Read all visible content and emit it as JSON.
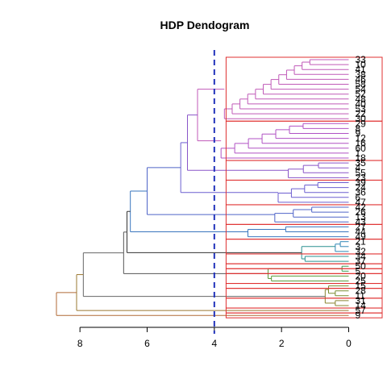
{
  "chart_data": {
    "type": "dendrogram",
    "title": "HDP Dendogram",
    "xlabel": "",
    "ylabel": "",
    "xlim": [
      8.7,
      -0.9
    ],
    "xticks": [
      "8",
      "6",
      "4",
      "2",
      "0"
    ],
    "cut_height": 4,
    "leaves": [
      "33",
      "10",
      "41",
      "38",
      "46",
      "58",
      "54",
      "52",
      "48",
      "40",
      "53",
      "22",
      "30",
      "29",
      "8",
      "9",
      "12",
      "16",
      "60",
      "1",
      "18",
      "35",
      "4",
      "55",
      "23",
      "39",
      "24",
      "36",
      "6",
      "47",
      "42",
      "26",
      "13",
      "43",
      "27",
      "44",
      "49",
      "21",
      "3",
      "32",
      "34",
      "37",
      "50",
      "5",
      "20",
      "25",
      "15",
      "28",
      "11",
      "31",
      "14",
      "57",
      "9"
    ],
    "clusters": [
      {
        "color": "#c05ab8",
        "leaves": [
          "33",
          "10",
          "41",
          "38",
          "46",
          "58",
          "54",
          "52",
          "48",
          "40",
          "53",
          "22",
          "30"
        ],
        "merge_height": 3.7
      },
      {
        "color": "#b052c4",
        "leaves": [
          "29",
          "8",
          "9",
          "12",
          "16",
          "60",
          "1",
          "18"
        ],
        "merge_height": 3.8
      },
      {
        "color": "#8a55c8",
        "leaves": [
          "35",
          "4",
          "55",
          "23"
        ],
        "merge_height": 1.8
      },
      {
        "color": "#6c5ed0",
        "leaves": [
          "39",
          "24",
          "36",
          "6",
          "47"
        ],
        "merge_height": 2.1
      },
      {
        "color": "#4f64c8",
        "leaves": [
          "42",
          "26",
          "13",
          "43"
        ],
        "merge_height": 2.2
      },
      {
        "color": "#3a76be",
        "leaves": [
          "27",
          "44",
          "49"
        ],
        "merge_height": 3.0
      },
      {
        "color": "#2f86b6",
        "leaves": [
          "21",
          "3",
          "32"
        ],
        "merge_height": 0.4
      },
      {
        "color": "#2a9090",
        "leaves": [
          "34",
          "37"
        ],
        "merge_height": 1.3
      },
      {
        "color": "#2a9a70",
        "leaves": [
          "50"
        ],
        "merge_height": 0
      },
      {
        "color": "#3c9a50",
        "leaves": [
          "5"
        ],
        "merge_height": 0
      },
      {
        "color": "#5a9a3a",
        "leaves": [
          "20",
          "25"
        ],
        "merge_height": 2.3
      },
      {
        "color": "#6a9434",
        "leaves": [
          "15"
        ],
        "merge_height": 0
      },
      {
        "color": "#7a8c30",
        "leaves": [
          "28",
          "11"
        ],
        "merge_height": 0.4
      },
      {
        "color": "#8a8430",
        "leaves": [
          "31",
          "14"
        ],
        "merge_height": 0.4
      },
      {
        "color": "#9a7830",
        "leaves": [
          "57"
        ],
        "merge_height": 0
      },
      {
        "color": "#b06a36",
        "leaves": [
          "9"
        ],
        "merge_height": 0
      }
    ],
    "top_merges": [
      4.5,
      4.8,
      5.0,
      6.0,
      6.5,
      6.6,
      6.7,
      7.9,
      8.1,
      8.7
    ],
    "box_color": "#e03030",
    "cut_line_color": "#2233bb"
  }
}
